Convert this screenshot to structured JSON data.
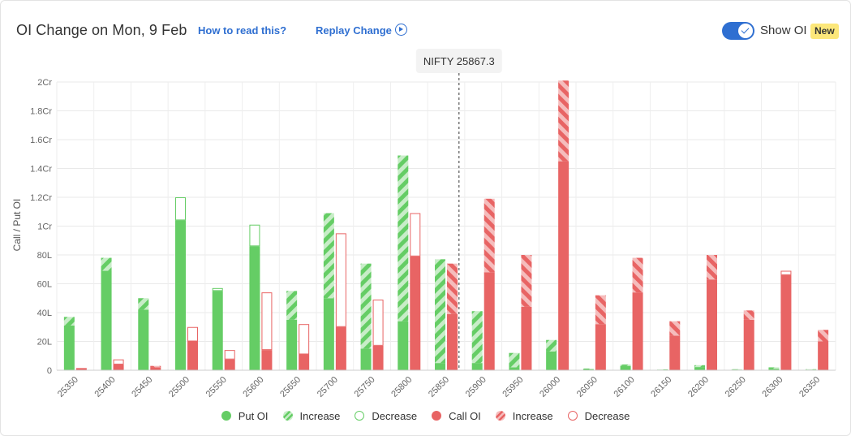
{
  "header": {
    "title": "OI Change on Mon, 9 Feb",
    "how_to_read": "How to read this?",
    "replay": "Replay Change",
    "show_oi_label": "Show OI",
    "badge": "New",
    "show_oi_enabled": true
  },
  "colors": {
    "put": "#65cd65",
    "put_light": "#c8edc8",
    "call": "#e86464",
    "call_light": "#f5bcbc",
    "link": "#2f6fd1",
    "badge": "#fce77a"
  },
  "chart_data": {
    "type": "bar",
    "ylabel": "Call / Put OI",
    "y_ticks": [
      "0",
      "20L",
      "40L",
      "60L",
      "80L",
      "1Cr",
      "1.2Cr",
      "1.4Cr",
      "1.6Cr",
      "1.8Cr",
      "2Cr"
    ],
    "ylim_lakh": [
      0,
      200
    ],
    "spot_label": "NIFTY 25867.3",
    "spot_value": 25867.3,
    "categories": [
      "25350",
      "25400",
      "25450",
      "25500",
      "25550",
      "25600",
      "25650",
      "25700",
      "25750",
      "25800",
      "25850",
      "25900",
      "25950",
      "26000",
      "26050",
      "26100",
      "26150",
      "26200",
      "26250",
      "26300",
      "26350"
    ],
    "units": "lakh",
    "put_oi": [
      31,
      69,
      42,
      104,
      55,
      86,
      35,
      50,
      15,
      34,
      5,
      5,
      2,
      13,
      0.6,
      3,
      0.3,
      2.2,
      0.4,
      1,
      0.4
    ],
    "put_oi_change_kind": [
      "increase",
      "increase",
      "increase",
      "decrease",
      "decrease",
      "decrease",
      "increase",
      "increase",
      "increase",
      "increase",
      "increase",
      "increase",
      "increase",
      "increase",
      "increase",
      "increase",
      "increase",
      "increase",
      "increase",
      "increase",
      "increase"
    ],
    "put_oi_change": [
      6,
      9,
      8,
      16,
      2,
      15,
      20,
      59,
      59,
      115,
      72,
      36,
      10,
      8,
      0.6,
      1,
      0.3,
      1.3,
      0.3,
      1,
      0.3
    ],
    "call_oi": [
      1.5,
      4,
      2,
      20,
      7.5,
      14,
      11,
      30,
      17,
      79,
      39,
      68,
      44,
      145,
      32,
      54,
      24,
      63,
      35,
      66,
      20
    ],
    "call_oi_change_kind": [
      "decrease",
      "decrease",
      "increase",
      "decrease",
      "decrease",
      "decrease",
      "decrease",
      "decrease",
      "decrease",
      "decrease",
      "increase",
      "increase",
      "increase",
      "increase",
      "increase",
      "increase",
      "increase",
      "increase",
      "increase",
      "decrease",
      "increase"
    ],
    "call_oi_change": [
      0.5,
      3.5,
      1,
      10,
      6.5,
      40,
      21,
      65,
      32,
      30,
      35,
      51,
      36,
      56,
      20,
      24,
      10,
      17,
      6.5,
      3,
      8
    ],
    "legend": [
      {
        "key": "put",
        "label": "Put OI"
      },
      {
        "key": "put_inc",
        "label": "Increase"
      },
      {
        "key": "put_dec",
        "label": "Decrease"
      },
      {
        "key": "call",
        "label": "Call OI"
      },
      {
        "key": "call_inc",
        "label": "Increase"
      },
      {
        "key": "call_dec",
        "label": "Decrease"
      }
    ]
  }
}
